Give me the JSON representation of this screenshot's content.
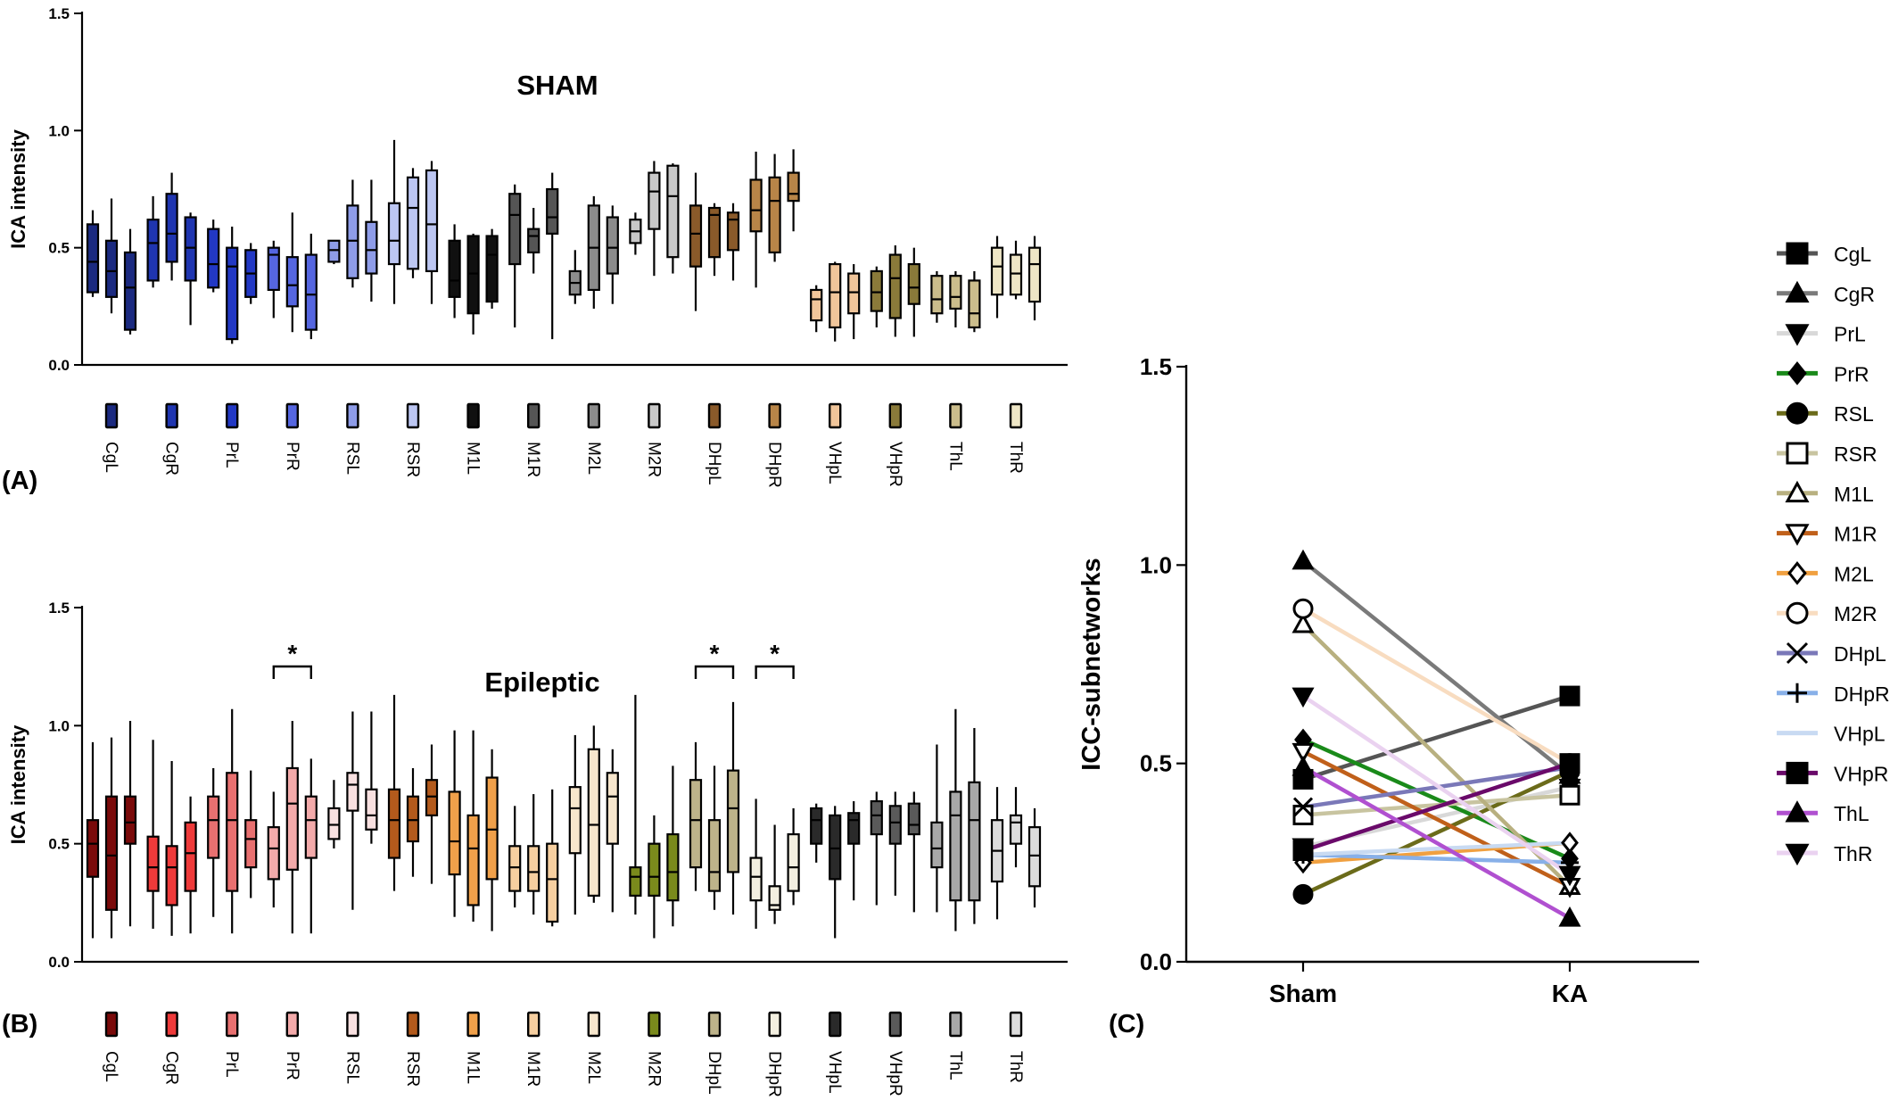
{
  "panels": {
    "A": {
      "label": "(A)"
    },
    "B": {
      "label": "(B)"
    },
    "C": {
      "label": "(C)"
    }
  },
  "chart_data": [
    {
      "type": "box",
      "panel": "A",
      "title": "SHAM",
      "ylabel": "ICA intensity",
      "ylim": [
        0,
        1.5
      ],
      "yticks": [
        "0.0",
        "0.5",
        "1.0",
        "1.5"
      ],
      "groups": [
        {
          "name": "CgL",
          "color": "#1b2a80",
          "boxes": [
            [
              0.29,
              0.31,
              0.44,
              0.6,
              0.66
            ],
            [
              0.22,
              0.29,
              0.4,
              0.53,
              0.71
            ],
            [
              0.13,
              0.15,
              0.33,
              0.48,
              0.58
            ]
          ]
        },
        {
          "name": "CgR",
          "color": "#1f35b0",
          "boxes": [
            [
              0.33,
              0.36,
              0.52,
              0.62,
              0.72
            ],
            [
              0.36,
              0.44,
              0.56,
              0.73,
              0.82
            ],
            [
              0.17,
              0.36,
              0.5,
              0.63,
              0.65
            ]
          ]
        },
        {
          "name": "PrL",
          "color": "#2238c4",
          "boxes": [
            [
              0.31,
              0.33,
              0.43,
              0.58,
              0.62
            ],
            [
              0.09,
              0.11,
              0.42,
              0.5,
              0.59
            ],
            [
              0.26,
              0.29,
              0.39,
              0.49,
              0.52
            ]
          ]
        },
        {
          "name": "PrR",
          "color": "#5566e0",
          "boxes": [
            [
              0.2,
              0.32,
              0.47,
              0.5,
              0.53
            ],
            [
              0.14,
              0.25,
              0.34,
              0.46,
              0.65
            ],
            [
              0.11,
              0.15,
              0.3,
              0.47,
              0.56
            ]
          ]
        },
        {
          "name": "RSL",
          "color": "#8e9ce8",
          "boxes": [
            [
              0.43,
              0.44,
              0.49,
              0.53,
              0.53
            ],
            [
              0.33,
              0.37,
              0.53,
              0.68,
              0.79
            ],
            [
              0.27,
              0.39,
              0.49,
              0.61,
              0.79
            ]
          ]
        },
        {
          "name": "RSR",
          "color": "#bcc6f2",
          "boxes": [
            [
              0.26,
              0.43,
              0.53,
              0.69,
              0.96
            ],
            [
              0.37,
              0.41,
              0.67,
              0.8,
              0.84
            ],
            [
              0.26,
              0.4,
              0.6,
              0.83,
              0.87
            ]
          ]
        },
        {
          "name": "M1L",
          "color": "#101010",
          "boxes": [
            [
              0.2,
              0.29,
              0.36,
              0.53,
              0.6
            ],
            [
              0.13,
              0.22,
              0.39,
              0.55,
              0.56
            ],
            [
              0.24,
              0.27,
              0.47,
              0.55,
              0.58
            ]
          ]
        },
        {
          "name": "M1R",
          "color": "#555555",
          "boxes": [
            [
              0.16,
              0.43,
              0.64,
              0.73,
              0.77
            ],
            [
              0.39,
              0.48,
              0.55,
              0.58,
              0.67
            ],
            [
              0.11,
              0.56,
              0.63,
              0.75,
              0.82
            ]
          ]
        },
        {
          "name": "M2L",
          "color": "#8c8c8c",
          "boxes": [
            [
              0.26,
              0.3,
              0.35,
              0.4,
              0.49
            ],
            [
              0.24,
              0.32,
              0.5,
              0.68,
              0.72
            ],
            [
              0.26,
              0.39,
              0.5,
              0.63,
              0.68
            ]
          ]
        },
        {
          "name": "M2R",
          "color": "#c8c8c8",
          "boxes": [
            [
              0.47,
              0.52,
              0.57,
              0.62,
              0.65
            ],
            [
              0.38,
              0.58,
              0.74,
              0.82,
              0.87
            ],
            [
              0.39,
              0.46,
              0.72,
              0.85,
              0.86
            ]
          ]
        },
        {
          "name": "DHpL",
          "color": "#8a5a2a",
          "boxes": [
            [
              0.23,
              0.42,
              0.56,
              0.68,
              0.82
            ],
            [
              0.38,
              0.46,
              0.64,
              0.67,
              0.69
            ],
            [
              0.36,
              0.49,
              0.62,
              0.65,
              0.69
            ]
          ]
        },
        {
          "name": "DHpR",
          "color": "#b88548",
          "boxes": [
            [
              0.33,
              0.57,
              0.66,
              0.79,
              0.91
            ],
            [
              0.44,
              0.48,
              0.7,
              0.8,
              0.9
            ],
            [
              0.57,
              0.7,
              0.73,
              0.82,
              0.92
            ]
          ]
        },
        {
          "name": "VHpL",
          "color": "#f0c59a",
          "boxes": [
            [
              0.14,
              0.19,
              0.28,
              0.32,
              0.34
            ],
            [
              0.1,
              0.16,
              0.31,
              0.43,
              0.44
            ],
            [
              0.11,
              0.22,
              0.31,
              0.39,
              0.43
            ]
          ]
        },
        {
          "name": "VHpR",
          "color": "#8a7a3a",
          "boxes": [
            [
              0.16,
              0.23,
              0.31,
              0.4,
              0.42
            ],
            [
              0.12,
              0.2,
              0.37,
              0.47,
              0.51
            ],
            [
              0.12,
              0.26,
              0.33,
              0.43,
              0.5
            ]
          ]
        },
        {
          "name": "ThL",
          "color": "#cbbd8c",
          "boxes": [
            [
              0.18,
              0.22,
              0.28,
              0.38,
              0.4
            ],
            [
              0.16,
              0.24,
              0.29,
              0.38,
              0.4
            ],
            [
              0.14,
              0.16,
              0.22,
              0.36,
              0.4
            ]
          ]
        },
        {
          "name": "ThR",
          "color": "#eee6c6",
          "boxes": [
            [
              0.2,
              0.3,
              0.42,
              0.5,
              0.55
            ],
            [
              0.28,
              0.3,
              0.39,
              0.47,
              0.53
            ],
            [
              0.19,
              0.27,
              0.43,
              0.5,
              0.55
            ]
          ]
        }
      ]
    },
    {
      "type": "box",
      "panel": "B",
      "title": "Epileptic",
      "ylabel": "ICA intensity",
      "ylim": [
        0,
        1.5
      ],
      "yticks": [
        "0.0",
        "0.5",
        "1.0",
        "1.5"
      ],
      "significance_marker": "*",
      "significant_groups": [
        "PrR",
        "DHpL",
        "DHpR"
      ],
      "groups": [
        {
          "name": "CgL",
          "color": "#7a0a0a",
          "boxes": [
            [
              0.1,
              0.36,
              0.5,
              0.6,
              0.93
            ],
            [
              0.1,
              0.22,
              0.45,
              0.7,
              0.95
            ],
            [
              0.15,
              0.5,
              0.59,
              0.7,
              1.02
            ]
          ]
        },
        {
          "name": "CgR",
          "color": "#ee3a3a",
          "boxes": [
            [
              0.14,
              0.3,
              0.4,
              0.53,
              0.94
            ],
            [
              0.11,
              0.24,
              0.4,
              0.49,
              0.85
            ],
            [
              0.12,
              0.3,
              0.46,
              0.59,
              0.7
            ]
          ]
        },
        {
          "name": "PrL",
          "color": "#e87070",
          "boxes": [
            [
              0.19,
              0.44,
              0.6,
              0.7,
              0.82
            ],
            [
              0.12,
              0.3,
              0.6,
              0.8,
              1.07
            ],
            [
              0.27,
              0.4,
              0.52,
              0.6,
              0.81
            ]
          ]
        },
        {
          "name": "PrR",
          "color": "#f3aaaa",
          "boxes": [
            [
              0.23,
              0.35,
              0.48,
              0.57,
              0.72
            ],
            [
              0.12,
              0.39,
              0.67,
              0.82,
              1.02
            ],
            [
              0.12,
              0.44,
              0.6,
              0.7,
              0.86
            ]
          ]
        },
        {
          "name": "RSL",
          "color": "#f8e0e0",
          "boxes": [
            [
              0.48,
              0.52,
              0.58,
              0.65,
              0.77
            ],
            [
              0.22,
              0.64,
              0.75,
              0.8,
              1.06
            ],
            [
              0.5,
              0.56,
              0.62,
              0.73,
              1.06
            ]
          ]
        },
        {
          "name": "RSR",
          "color": "#b35a1c",
          "boxes": [
            [
              0.3,
              0.44,
              0.6,
              0.73,
              1.13
            ],
            [
              0.36,
              0.51,
              0.6,
              0.7,
              0.82
            ],
            [
              0.33,
              0.62,
              0.7,
              0.77,
              0.92
            ]
          ]
        },
        {
          "name": "M1L",
          "color": "#f0a04a",
          "boxes": [
            [
              0.19,
              0.37,
              0.51,
              0.72,
              0.98
            ],
            [
              0.17,
              0.24,
              0.48,
              0.62,
              0.98
            ],
            [
              0.13,
              0.35,
              0.56,
              0.78,
              0.9
            ]
          ]
        },
        {
          "name": "M1R",
          "color": "#f6cfa0",
          "boxes": [
            [
              0.23,
              0.3,
              0.4,
              0.49,
              0.66
            ],
            [
              0.2,
              0.3,
              0.38,
              0.49,
              0.71
            ],
            [
              0.15,
              0.17,
              0.35,
              0.5,
              0.73
            ]
          ]
        },
        {
          "name": "M2L",
          "color": "#f7e6cc",
          "boxes": [
            [
              0.2,
              0.46,
              0.65,
              0.74,
              0.96
            ],
            [
              0.25,
              0.28,
              0.58,
              0.9,
              1.0
            ],
            [
              0.21,
              0.5,
              0.7,
              0.8,
              0.9
            ]
          ]
        },
        {
          "name": "M2R",
          "color": "#7a8a1c",
          "boxes": [
            [
              0.2,
              0.28,
              0.36,
              0.4,
              1.13
            ],
            [
              0.1,
              0.28,
              0.36,
              0.5,
              0.62
            ],
            [
              0.15,
              0.26,
              0.38,
              0.54,
              0.83
            ]
          ]
        },
        {
          "name": "DHpL",
          "color": "#bdb38a",
          "boxes": [
            [
              0.3,
              0.4,
              0.6,
              0.77,
              0.93
            ],
            [
              0.22,
              0.3,
              0.38,
              0.6,
              0.83
            ],
            [
              0.2,
              0.38,
              0.65,
              0.81,
              1.1
            ]
          ]
        },
        {
          "name": "DHpR",
          "color": "#f3efe0",
          "boxes": [
            [
              0.14,
              0.26,
              0.36,
              0.44,
              0.69
            ],
            [
              0.16,
              0.22,
              0.24,
              0.32,
              0.58
            ],
            [
              0.24,
              0.3,
              0.4,
              0.54,
              0.65
            ]
          ]
        },
        {
          "name": "VHpL",
          "color": "#2a2a2a",
          "boxes": [
            [
              0.42,
              0.5,
              0.6,
              0.65,
              0.67
            ],
            [
              0.1,
              0.35,
              0.48,
              0.62,
              0.66
            ],
            [
              0.26,
              0.5,
              0.6,
              0.63,
              0.68
            ]
          ]
        },
        {
          "name": "VHpR",
          "color": "#5a5a5a",
          "boxes": [
            [
              0.24,
              0.54,
              0.62,
              0.68,
              0.72
            ],
            [
              0.28,
              0.5,
              0.59,
              0.66,
              0.72
            ],
            [
              0.21,
              0.54,
              0.58,
              0.67,
              0.72
            ]
          ]
        },
        {
          "name": "ThL",
          "color": "#a8a8a8",
          "boxes": [
            [
              0.21,
              0.4,
              0.48,
              0.59,
              0.92
            ],
            [
              0.13,
              0.26,
              0.62,
              0.72,
              1.07
            ],
            [
              0.16,
              0.26,
              0.6,
              0.76,
              0.99
            ]
          ]
        },
        {
          "name": "ThR",
          "color": "#dcdcdc",
          "boxes": [
            [
              0.18,
              0.34,
              0.47,
              0.6,
              0.74
            ],
            [
              0.4,
              0.5,
              0.59,
              0.62,
              0.74
            ],
            [
              0.23,
              0.32,
              0.45,
              0.57,
              0.65
            ]
          ]
        }
      ]
    },
    {
      "type": "line",
      "panel": "C",
      "ylabel": "ICC-subnetworks",
      "categories": [
        "Sham",
        "KA"
      ],
      "ylim": [
        0,
        1.5
      ],
      "yticks": [
        "0.0",
        "0.5",
        "1.0",
        "1.5"
      ],
      "legend_position": "right",
      "series": [
        {
          "name": "CgL",
          "values": [
            0.46,
            0.67
          ],
          "color": "#555555",
          "marker": "square"
        },
        {
          "name": "CgR",
          "values": [
            1.01,
            0.47
          ],
          "color": "#7a7a7a",
          "marker": "triangle"
        },
        {
          "name": "PrL",
          "values": [
            0.29,
            0.44
          ],
          "color": "#d8d8d8",
          "marker": "triangle-down"
        },
        {
          "name": "PrR",
          "values": [
            0.56,
            0.26
          ],
          "color": "#1a8a1a",
          "marker": "diamond"
        },
        {
          "name": "RSL",
          "values": [
            0.17,
            0.48
          ],
          "color": "#6b6b1a",
          "marker": "circle"
        },
        {
          "name": "RSR",
          "values": [
            0.37,
            0.42
          ],
          "color": "#c8c4a0",
          "marker": "square-open"
        },
        {
          "name": "M1L",
          "values": [
            0.85,
            0.19
          ],
          "color": "#b8b080",
          "marker": "triangle-open"
        },
        {
          "name": "M1R",
          "values": [
            0.53,
            0.19
          ],
          "color": "#c0601a",
          "marker": "triangle-down-open"
        },
        {
          "name": "M2L",
          "values": [
            0.25,
            0.3
          ],
          "color": "#f0a040",
          "marker": "diamond-open"
        },
        {
          "name": "M2R",
          "values": [
            0.89,
            0.5
          ],
          "color": "#f8dcc0",
          "marker": "circle-open"
        },
        {
          "name": "DHpL",
          "values": [
            0.39,
            0.49
          ],
          "color": "#7a78b8",
          "marker": "x"
        },
        {
          "name": "DHpR",
          "values": [
            0.27,
            0.25
          ],
          "color": "#88b0e8",
          "marker": "plus"
        },
        {
          "name": "VHpL",
          "values": [
            0.27,
            0.3
          ],
          "color": "#c8daf2",
          "marker": "none"
        },
        {
          "name": "VHpR",
          "values": [
            0.28,
            0.5
          ],
          "color": "#6a0a6a",
          "marker": "square"
        },
        {
          "name": "ThL",
          "values": [
            0.49,
            0.11
          ],
          "color": "#b050d0",
          "marker": "triangle"
        },
        {
          "name": "ThR",
          "values": [
            0.67,
            0.22
          ],
          "color": "#ead2f0",
          "marker": "triangle-down"
        }
      ]
    }
  ]
}
